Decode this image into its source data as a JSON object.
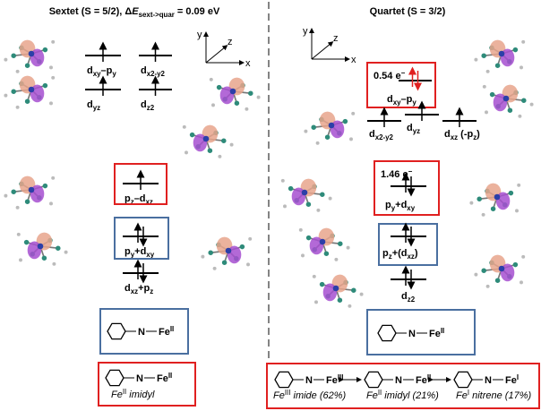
{
  "left": {
    "title": [
      {
        "text": "Sextet (S = 5/2), Δ"
      },
      {
        "italic": "E"
      },
      {
        "sub": "sext->quar"
      },
      {
        "text": " = 0.09 eV"
      }
    ],
    "axes": {
      "y": "y",
      "z": "z",
      "x": "x"
    },
    "levels": [
      {
        "label": [
          {
            "text": "d"
          },
          {
            "sub": "xy"
          },
          {
            "text": "–p"
          },
          {
            "sub": "y"
          }
        ]
      },
      {
        "label": [
          {
            "text": "d"
          },
          {
            "sub": "x2-y2"
          }
        ]
      },
      {
        "label": [
          {
            "text": "d"
          },
          {
            "sub": "yz"
          }
        ]
      },
      {
        "label": [
          {
            "text": "d"
          },
          {
            "sub": "z2"
          }
        ]
      },
      {
        "label": [
          {
            "text": "p"
          },
          {
            "sub": "z"
          },
          {
            "text": "–d"
          },
          {
            "sub": "xz"
          }
        ]
      },
      {
        "label": [
          {
            "text": "p"
          },
          {
            "sub": "y"
          },
          {
            "text": "+d"
          },
          {
            "sub": "xy"
          }
        ]
      },
      {
        "label": [
          {
            "text": "d"
          },
          {
            "sub": "xz"
          },
          {
            "text": "+p"
          },
          {
            "sub": "z"
          }
        ]
      }
    ],
    "structure_labels": [
      [
        {
          "text": "N"
        }
      ],
      [
        {
          "text": "Fe"
        },
        {
          "sup": "II"
        }
      ]
    ],
    "caption_labels": [
      [
        {
          "text": "N"
        }
      ],
      [
        {
          "text": "Fe"
        },
        {
          "sup": "II"
        }
      ]
    ],
    "caption": [
      {
        "italic": "Fe"
      },
      {
        "sup": "II"
      },
      {
        "italic": " imidyl"
      }
    ]
  },
  "right": {
    "title": [
      {
        "text": "Quartet (S = 3/2)"
      }
    ],
    "axes": {
      "y": "y",
      "z": "z",
      "x": "x"
    },
    "electron_labels": [
      [
        {
          "text": "0.54 e"
        },
        {
          "sup": "−"
        }
      ],
      [
        {
          "text": "1.46 e"
        },
        {
          "sup": "−"
        }
      ]
    ],
    "levels": [
      {
        "label": [
          {
            "text": "d"
          },
          {
            "sub": "xy"
          },
          {
            "text": "–p"
          },
          {
            "sub": "y"
          }
        ]
      },
      {
        "label": [
          {
            "text": "d"
          },
          {
            "sub": "x2-y2"
          }
        ]
      },
      {
        "label": [
          {
            "text": "d"
          },
          {
            "sub": "yz"
          }
        ]
      },
      {
        "label": [
          {
            "text": "d"
          },
          {
            "sub": "xz"
          },
          {
            "text": " (-p"
          },
          {
            "sub": "z"
          },
          {
            "text": ")"
          }
        ]
      },
      {
        "label": [
          {
            "text": "p"
          },
          {
            "sub": "y"
          },
          {
            "text": "+d"
          },
          {
            "sub": "xy"
          }
        ]
      },
      {
        "label": [
          {
            "text": "p"
          },
          {
            "sub": "z"
          },
          {
            "text": "+(d"
          },
          {
            "sub": "xz"
          },
          {
            "text": ")"
          }
        ]
      },
      {
        "label": [
          {
            "text": "d"
          },
          {
            "sub": "z2"
          }
        ]
      }
    ],
    "structure_labels": [
      [
        {
          "text": "N"
        }
      ],
      [
        {
          "text": "Fe"
        },
        {
          "sup": "II"
        }
      ]
    ],
    "resonance": [
      {
        "atoms": [
          [
            {
              "text": "N"
            }
          ],
          [
            {
              "text": "Fe"
            },
            {
              "sup": "III"
            }
          ]
        ],
        "caption": [
          {
            "italic": "Fe"
          },
          {
            "sup": "III"
          },
          {
            "italic": " imide (62%)"
          }
        ]
      },
      {
        "atoms": [
          [
            {
              "text": "N"
            }
          ],
          [
            {
              "text": "Fe"
            },
            {
              "sup": "II"
            }
          ]
        ],
        "caption": [
          {
            "italic": "Fe"
          },
          {
            "sup": "II"
          },
          {
            "italic": " imidyl (21%)"
          }
        ]
      },
      {
        "atoms": [
          [
            {
              "text": "N"
            }
          ],
          [
            {
              "text": "Fe"
            },
            {
              "sup": "I"
            }
          ]
        ],
        "caption": [
          {
            "italic": "Fe"
          },
          {
            "sup": "I"
          },
          {
            "italic": " nitrene (17%)"
          }
        ]
      }
    ]
  }
}
